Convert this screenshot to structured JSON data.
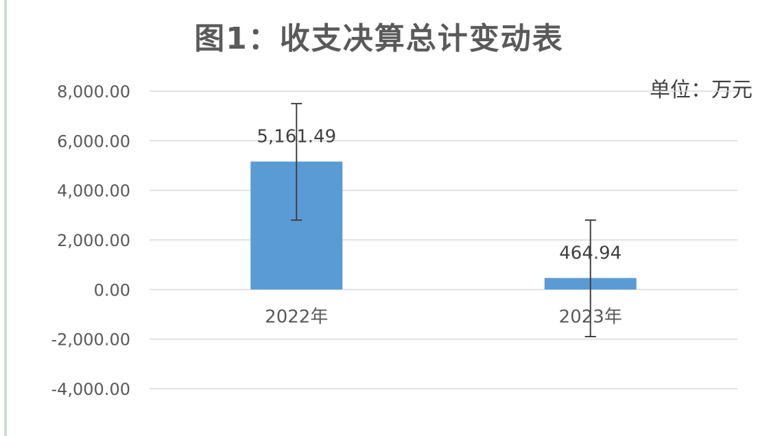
{
  "chart_data": {
    "type": "bar",
    "title": "图1：收支决算总计变动表",
    "unit": "单位：万元",
    "categories": [
      "2022年",
      "2023年"
    ],
    "values": [
      5161.49,
      464.94
    ],
    "data_labels": [
      "5,161.49",
      "464.94"
    ],
    "error_bars": [
      {
        "low": 2800,
        "high": 7500
      },
      {
        "low": -1900,
        "high": 2800
      }
    ],
    "ylim": [
      -4000,
      8000
    ],
    "yticks": [
      8000,
      6000,
      4000,
      2000,
      0,
      -2000,
      -4000
    ],
    "ytick_labels": [
      "8,000.00",
      "6,000.00",
      "4,000.00",
      "2,000.00",
      "0.00",
      "-2,000.00",
      "-4,000.00"
    ],
    "grid": true,
    "legend": "none",
    "colors": {
      "bar": "#5b9bd5",
      "grid": "#d9d9d9",
      "error_bar": "#404040"
    }
  }
}
